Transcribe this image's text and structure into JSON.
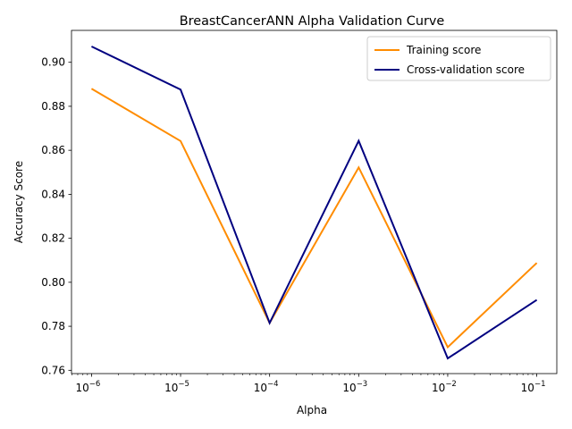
{
  "chart_data": {
    "type": "line",
    "title": "BreastCancerANN Alpha Validation Curve",
    "xlabel": "Alpha",
    "ylabel": "Accuracy Score",
    "x_scale": "log",
    "x": [
      1e-06,
      1e-05,
      0.0001,
      0.001,
      0.01,
      0.1
    ],
    "x_tick_labels": [
      {
        "base": "10",
        "exp": "−6"
      },
      {
        "base": "10",
        "exp": "−5"
      },
      {
        "base": "10",
        "exp": "−4"
      },
      {
        "base": "10",
        "exp": "−3"
      },
      {
        "base": "10",
        "exp": "−2"
      },
      {
        "base": "10",
        "exp": "−1"
      }
    ],
    "y_ticks": [
      "0.76",
      "0.78",
      "0.80",
      "0.82",
      "0.84",
      "0.86",
      "0.88",
      "0.90"
    ],
    "ylim": [
      0.7585,
      0.9145
    ],
    "grid": false,
    "legend_position": "top-right",
    "series": [
      {
        "name": "Training score",
        "color": "#ff8c00",
        "values": [
          0.888,
          0.8642,
          0.7815,
          0.8522,
          0.7705,
          0.8088
        ]
      },
      {
        "name": "Cross-validation score",
        "color": "#000080",
        "values": [
          0.9072,
          0.8876,
          0.7815,
          0.8643,
          0.7654,
          0.792
        ]
      }
    ]
  }
}
